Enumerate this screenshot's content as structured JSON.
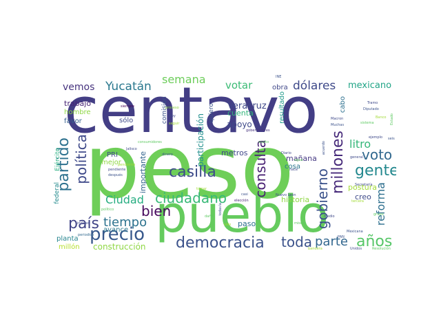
{
  "word_cloud": {
    "words": [
      {
        "text": "centavo",
        "color": "#433E85"
      },
      {
        "text": "peso",
        "color": "#6ECE58"
      },
      {
        "text": "pueblo",
        "color": "#65CB5E"
      },
      {
        "text": "democracia",
        "color": "#3B528B"
      },
      {
        "text": "precio",
        "color": "#38588C"
      },
      {
        "text": "casilla",
        "color": "#3E4C8A"
      },
      {
        "text": "ciudadano",
        "color": "#38B977"
      },
      {
        "text": "partido",
        "color": "#2D718E"
      },
      {
        "text": "política",
        "color": "#3E4989"
      },
      {
        "text": "país",
        "color": "#414487"
      },
      {
        "text": "tiempo",
        "color": "#2C728E"
      },
      {
        "text": "Ciudad",
        "color": "#27AD81"
      },
      {
        "text": "bien",
        "color": "#46085C"
      },
      {
        "text": "toda",
        "color": "#3B528B"
      },
      {
        "text": "parte",
        "color": "#31668E"
      },
      {
        "text": "años",
        "color": "#56C667"
      },
      {
        "text": "gobierno",
        "color": "#3B528B"
      },
      {
        "text": "millones",
        "color": "#472A7A"
      },
      {
        "text": "consulta",
        "color": "#482173"
      },
      {
        "text": "gente",
        "color": "#23888E"
      },
      {
        "text": "voto",
        "color": "#31688E"
      },
      {
        "text": "reforma",
        "color": "#2E6F8E"
      },
      {
        "text": "litro",
        "color": "#35B779"
      },
      {
        "text": "Yucatán",
        "color": "#2A788E"
      },
      {
        "text": "semana",
        "color": "#6CCD5A"
      },
      {
        "text": "votar",
        "color": "#3BBB75"
      },
      {
        "text": "dólares",
        "color": "#3E4989"
      },
      {
        "text": "vemos",
        "color": "#46337E"
      },
      {
        "text": "mexicano",
        "color": "#20A486"
      },
      {
        "text": "construcción",
        "color": "#8FD744"
      },
      {
        "text": "importante",
        "color": "#33638D"
      },
      {
        "text": "participación",
        "color": "#218F8D"
      },
      {
        "text": "Veracruz",
        "color": "#3F4788"
      },
      {
        "text": "cuenta",
        "color": "#31B57B"
      },
      {
        "text": "apoyo",
        "color": "#3E4A89"
      },
      {
        "text": "metros",
        "color": "#3F4788"
      },
      {
        "text": "historia",
        "color": "#8FD744"
      },
      {
        "text": "postura",
        "color": "#A2DA37"
      },
      {
        "text": "creo",
        "color": "#3E4A89"
      },
      {
        "text": "paso",
        "color": "#2D708E"
      },
      {
        "text": "mañana",
        "color": "#453882"
      },
      {
        "text": "cosa",
        "color": "#2B758E"
      },
      {
        "text": "cabo",
        "color": "#2D708E"
      },
      {
        "text": "resultado",
        "color": "#1F9A8A"
      },
      {
        "text": "obra",
        "color": "#3F4788"
      },
      {
        "text": "trabajo",
        "color": "#482576"
      },
      {
        "text": "hombre",
        "color": "#8FD744"
      },
      {
        "text": "favor",
        "color": "#35608D"
      },
      {
        "text": "sólo",
        "color": "#3E4989"
      },
      {
        "text": "comisión",
        "color": "#3B528B"
      },
      {
        "text": "quiero",
        "color": "#3A538B"
      },
      {
        "text": "mejor",
        "color": "#8FD744"
      },
      {
        "text": "PRI",
        "color": "#3E4989"
      },
      {
        "text": "avance",
        "color": "#2A788E"
      },
      {
        "text": "planta",
        "color": "#25848E"
      },
      {
        "text": "millón",
        "color": "#B5DE2B"
      },
      {
        "text": "federal",
        "color": "#238A8D"
      },
      {
        "text": "Ejército",
        "color": "#28AE80"
      },
      {
        "text": "siempre",
        "color": "#440154"
      },
      {
        "text": "proceso",
        "color": "#8FD744"
      },
      {
        "text": "Hoy",
        "color": "#3E4989"
      },
      {
        "text": "seguir",
        "color": "#A2DA37"
      },
      {
        "text": "gobernadores",
        "color": "#46337E"
      },
      {
        "text": "INE",
        "color": "#3B528B"
      },
      {
        "text": "Jalisco",
        "color": "#3E4989"
      },
      {
        "text": "dinero",
        "color": "#3B528B"
      },
      {
        "text": "consumidores",
        "color": "#5EC962"
      },
      {
        "text": "pendiente",
        "color": "#3E4989"
      },
      {
        "text": "después",
        "color": "#3B528B"
      },
      {
        "text": "periodico",
        "color": "#31688E"
      },
      {
        "text": "incluso",
        "color": "#3E4989"
      },
      {
        "text": "político",
        "color": "#5EC962"
      },
      {
        "text": "tomar",
        "color": "#A2DA37"
      },
      {
        "text": "casi",
        "color": "#3B528B"
      },
      {
        "text": "elección",
        "color": "#482576"
      },
      {
        "text": "Nuevo León",
        "color": "#3E4989"
      },
      {
        "text": "todavía",
        "color": "#3B528B"
      },
      {
        "text": "sido",
        "color": "#A2DA37"
      },
      {
        "text": "daño",
        "color": "#5EC962"
      },
      {
        "text": "Diario",
        "color": "#3E4989"
      },
      {
        "text": "agua",
        "color": "#5EC962"
      },
      {
        "text": "Tramo",
        "color": "#3E4989"
      },
      {
        "text": "Diputado",
        "color": "#3B528B"
      },
      {
        "text": "Macron",
        "color": "#3E4989"
      },
      {
        "text": "Muchas",
        "color": "#3B528B"
      },
      {
        "text": "sistema",
        "color": "#5EC962"
      },
      {
        "text": "Banco",
        "color": "#A2DA37"
      },
      {
        "text": "Estado",
        "color": "#5EC962"
      },
      {
        "text": "ejemplo",
        "color": "#3E4989"
      },
      {
        "text": "seis",
        "color": "#3B528B"
      },
      {
        "text": "Secretaría",
        "color": "#3E4989"
      },
      {
        "text": "tercera",
        "color": "#A2DA37"
      },
      {
        "text": "medio",
        "color": "#3E4989"
      },
      {
        "text": "PAN",
        "color": "#3B528B"
      },
      {
        "text": "Unidos",
        "color": "#3E4989"
      },
      {
        "text": "Resolución",
        "color": "#5EC962"
      },
      {
        "text": "bandera",
        "color": "#A2DA37"
      },
      {
        "text": "mismo",
        "color": "#5EC962"
      },
      {
        "text": "general",
        "color": "#3E4989"
      },
      {
        "text": "acuerdo",
        "color": "#3B528B"
      },
      {
        "text": "asalto",
        "color": "#5EC962"
      },
      {
        "text": "pendiente",
        "color": "#A2DA37"
      },
      {
        "text": "hace",
        "color": "#3E4989"
      },
      {
        "text": "grupo",
        "color": "#5EC962"
      },
      {
        "text": "Mexicana",
        "color": "#3B528B"
      }
    ]
  }
}
